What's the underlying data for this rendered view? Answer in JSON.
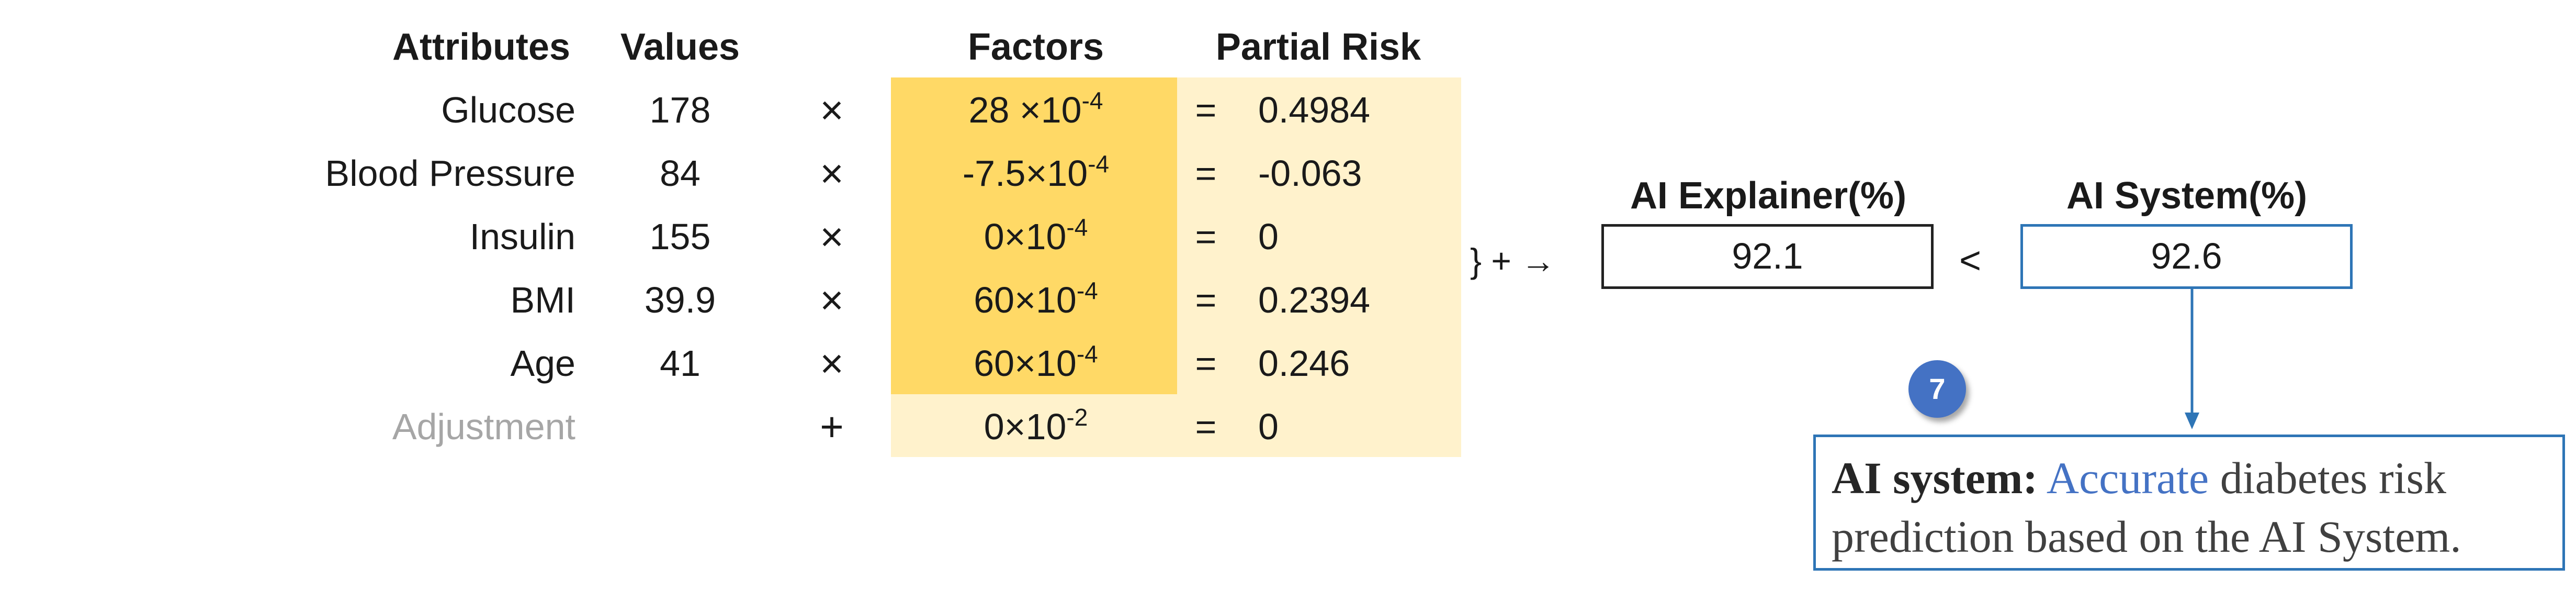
{
  "headers": {
    "attributes": "Attributes",
    "values": "Values",
    "factors": "Factors",
    "partial_risk": "Partial Risk"
  },
  "rows": [
    {
      "attribute": "Glucose",
      "value": "178",
      "op": "×",
      "factor_base": "28 ×10",
      "factor_exp": "-4",
      "eq": "=",
      "partial": "0.4984"
    },
    {
      "attribute": "Blood Pressure",
      "value": "84",
      "op": "×",
      "factor_base": "-7.5×10",
      "factor_exp": "-4",
      "eq": "=",
      "partial": "-0.063"
    },
    {
      "attribute": "Insulin",
      "value": "155",
      "op": "×",
      "factor_base": "0×10",
      "factor_exp": "-4",
      "eq": "=",
      "partial": "0"
    },
    {
      "attribute": "BMI",
      "value": "39.9",
      "op": "×",
      "factor_base": "60×10",
      "factor_exp": "-4",
      "eq": "=",
      "partial": "0.2394"
    },
    {
      "attribute": "Age",
      "value": "41",
      "op": "×",
      "factor_base": "60×10",
      "factor_exp": "-4",
      "eq": "=",
      "partial": "0.246"
    },
    {
      "attribute": "Adjustment",
      "value": "",
      "op": "+",
      "factor_base": "0×10",
      "factor_exp": "-2",
      "eq": "=",
      "partial": "0"
    }
  ],
  "sum_arrow": "} + →",
  "explainer": {
    "label": "AI Explainer(%)",
    "value": "92.1"
  },
  "comparison": "<",
  "system": {
    "label": "AI System(%)",
    "value": "92.6"
  },
  "badge": "7",
  "caption": {
    "bold": "AI system:",
    "highlight": "Accurate",
    "rest_line1": "diabetes risk",
    "line2": "prediction based on the AI System."
  },
  "colors": {
    "factor_light": "#fff2cc",
    "factor_dark": "#ffd966",
    "accent_blue": "#2e75b6"
  }
}
